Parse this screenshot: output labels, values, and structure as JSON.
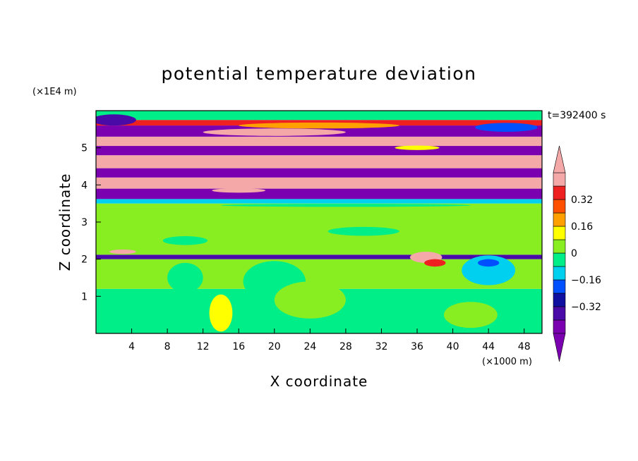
{
  "chart_data": {
    "type": "heatmap",
    "title": "potential temperature deviation",
    "xlabel": "X coordinate",
    "ylabel": "Z coordinate",
    "x_unit": "(×1000 m)",
    "y_unit": "(×1E4 m)",
    "time_label": "t=392400 s",
    "xlim": [
      0,
      50
    ],
    "ylim": [
      0,
      6
    ],
    "x_ticks": [
      4,
      8,
      12,
      16,
      20,
      24,
      28,
      32,
      36,
      40,
      44,
      48
    ],
    "y_ticks": [
      1,
      2,
      3,
      4,
      5
    ],
    "colorbar": {
      "levels": [
        -0.48,
        -0.4,
        -0.32,
        -0.24,
        -0.16,
        -0.08,
        0,
        0.08,
        0.16,
        0.24,
        0.32,
        0.4,
        0.48
      ],
      "colors": [
        "#7a00b0",
        "#4a0aa8",
        "#1010a0",
        "#0050ff",
        "#00d0f0",
        "#00ee88",
        "#88ee22",
        "#ffff00",
        "#ffa000",
        "#ff5000",
        "#ee2020",
        "#f4a8a8"
      ],
      "tick_labels": [
        {
          "value": 0.32,
          "text": "0.32"
        },
        {
          "value": 0.16,
          "text": "0.16"
        },
        {
          "value": 0,
          "text": "0"
        },
        {
          "value": -0.16,
          "text": "−0.16"
        },
        {
          "value": -0.32,
          "text": "−0.32"
        }
      ]
    },
    "bands": [
      {
        "z": [
          0.0,
          1.2
        ],
        "color": "#00ee88"
      },
      {
        "z": [
          1.2,
          2.0
        ],
        "color": "#88ee22"
      },
      {
        "z": [
          2.0,
          2.12
        ],
        "color": "#4a0aa8"
      },
      {
        "z": [
          2.12,
          3.5
        ],
        "color": "#88ee22"
      },
      {
        "z": [
          3.5,
          3.62
        ],
        "color": "#00d0f0"
      },
      {
        "z": [
          3.62,
          3.9
        ],
        "color": "#7a00b0"
      },
      {
        "z": [
          3.9,
          4.2
        ],
        "color": "#f4a8a8"
      },
      {
        "z": [
          4.2,
          4.45
        ],
        "color": "#7a00b0"
      },
      {
        "z": [
          4.45,
          4.8
        ],
        "color": "#f4a8a8"
      },
      {
        "z": [
          4.8,
          5.05
        ],
        "color": "#7a00b0"
      },
      {
        "z": [
          5.05,
          5.3
        ],
        "color": "#f4a8a8"
      },
      {
        "z": [
          5.3,
          5.6
        ],
        "color": "#7a00b0"
      },
      {
        "z": [
          5.6,
          5.75
        ],
        "color": "#ee2020"
      },
      {
        "z": [
          5.75,
          6.0
        ],
        "color": "#00ee88"
      }
    ],
    "patches": [
      {
        "x": 10,
        "z": 2.5,
        "rx": 2.5,
        "rz": 0.12,
        "color": "#00ee88"
      },
      {
        "x": 30,
        "z": 2.75,
        "rx": 4,
        "rz": 0.12,
        "color": "#00ee88"
      },
      {
        "x": 3,
        "z": 2.2,
        "rx": 1.5,
        "rz": 0.06,
        "color": "#f4a8a8"
      },
      {
        "x": 37,
        "z": 2.05,
        "rx": 1.8,
        "rz": 0.15,
        "color": "#f4a8a8"
      },
      {
        "x": 38,
        "z": 1.9,
        "rx": 1.2,
        "rz": 0.1,
        "color": "#ee2020"
      },
      {
        "x": 44,
        "z": 1.7,
        "rx": 3,
        "rz": 0.4,
        "color": "#00d0f0"
      },
      {
        "x": 44,
        "z": 1.9,
        "rx": 1.2,
        "rz": 0.1,
        "color": "#0050ff"
      },
      {
        "x": 14,
        "z": 0.55,
        "rx": 1.3,
        "rz": 0.5,
        "color": "#ffff00"
      },
      {
        "x": 10,
        "z": 1.5,
        "rx": 2,
        "rz": 0.4,
        "color": "#00ee88"
      },
      {
        "x": 20,
        "z": 1.4,
        "rx": 3.5,
        "rz": 0.55,
        "color": "#00ee88"
      },
      {
        "x": 24,
        "z": 0.9,
        "rx": 4,
        "rz": 0.5,
        "color": "#88ee22"
      },
      {
        "x": 42,
        "z": 0.5,
        "rx": 3,
        "rz": 0.35,
        "color": "#88ee22"
      },
      {
        "x": 25,
        "z": 5.6,
        "rx": 9,
        "rz": 0.08,
        "color": "#ffa000"
      },
      {
        "x": 20,
        "z": 5.42,
        "rx": 8,
        "rz": 0.1,
        "color": "#f4a8a8"
      },
      {
        "x": 2,
        "z": 5.75,
        "rx": 2.5,
        "rz": 0.15,
        "color": "#4a0aa8"
      },
      {
        "x": 46,
        "z": 5.55,
        "rx": 3.5,
        "rz": 0.12,
        "color": "#0050ff"
      },
      {
        "x": 28,
        "z": 3.45,
        "rx": 14,
        "rz": 0.04,
        "color": "#00ee88"
      },
      {
        "x": 16,
        "z": 3.85,
        "rx": 3,
        "rz": 0.06,
        "color": "#f4a8a8"
      },
      {
        "x": 36,
        "z": 5.0,
        "rx": 2.5,
        "rz": 0.06,
        "color": "#ffff00"
      }
    ]
  }
}
